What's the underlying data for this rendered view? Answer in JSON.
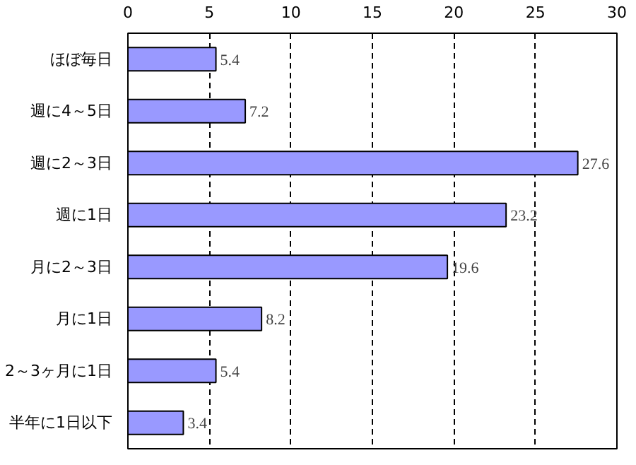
{
  "chart_data": {
    "type": "bar",
    "orientation": "horizontal",
    "categories": [
      "ほぼ毎日",
      "週に4～5日",
      "週に2～3日",
      "週に1日",
      "月に2～3日",
      "月に1日",
      "2～3ヶ月に1日",
      "半年に1日以下"
    ],
    "values": [
      5.4,
      7.2,
      27.6,
      23.2,
      19.6,
      8.2,
      5.4,
      3.4
    ],
    "color": "#9999ff",
    "xlim": [
      0,
      30
    ],
    "xticks": [
      0,
      5,
      10,
      15,
      20,
      25,
      30
    ],
    "grid": "x",
    "data_labels": true
  }
}
